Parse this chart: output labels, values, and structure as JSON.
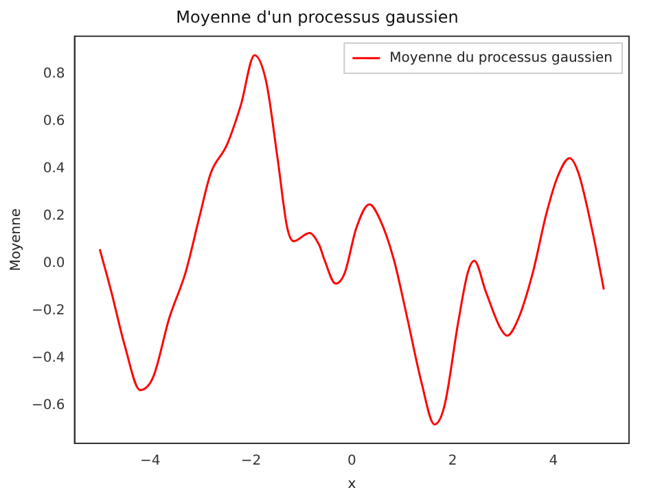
{
  "chart_data": {
    "type": "line",
    "title": "Moyenne d'un processus gaussien",
    "xlabel": "x",
    "ylabel": "Moyenne",
    "xlim": [
      -5.5,
      5.5
    ],
    "xticks": [
      -4,
      -2,
      0,
      2,
      4
    ],
    "ylim": [
      -0.76,
      0.96
    ],
    "yticks": [
      -0.6,
      -0.4,
      -0.2,
      {
        "value": 0,
        "label": "0.0"
      },
      0.2,
      0.4,
      0.6,
      0.8
    ],
    "grid": false,
    "legend": "top right",
    "marker": "none",
    "line_style": "solid",
    "series": [
      {
        "name": "Moyenne du processus gaussien",
        "color": "#ff0000",
        "x": [
          -5,
          -4.77,
          -4.5,
          -4.2,
          -3.94,
          -3.62,
          -3.3,
          -3.03,
          -2.8,
          -2.48,
          -2.2,
          -1.93,
          -1.7,
          -1.47,
          -1.28,
          -1.15,
          -0.84,
          -0.64,
          -0.55,
          -0.32,
          -0.14,
          0.09,
          0.35,
          0.55,
          0.83,
          1.1,
          1.38,
          1.64,
          1.84,
          2.11,
          2.3,
          2.43,
          2.66,
          2.94,
          3.08,
          3.31,
          3.59,
          3.86,
          4.09,
          4.32,
          4.5,
          4.78,
          4.92,
          5
        ],
        "values": [
          0.06,
          -0.12,
          -0.35,
          -0.535,
          -0.48,
          -0.23,
          -0.04,
          0.19,
          0.38,
          0.5,
          0.67,
          0.88,
          0.77,
          0.44,
          0.15,
          0.094,
          0.129,
          0.075,
          0.02,
          -0.085,
          -0.04,
          0.15,
          0.25,
          0.19,
          0.02,
          -0.23,
          -0.5,
          -0.68,
          -0.6,
          -0.25,
          -0.04,
          0.011,
          -0.12,
          -0.27,
          -0.305,
          -0.23,
          -0.04,
          0.21,
          0.37,
          0.445,
          0.38,
          0.13,
          -0.02,
          -0.11
        ]
      }
    ]
  }
}
